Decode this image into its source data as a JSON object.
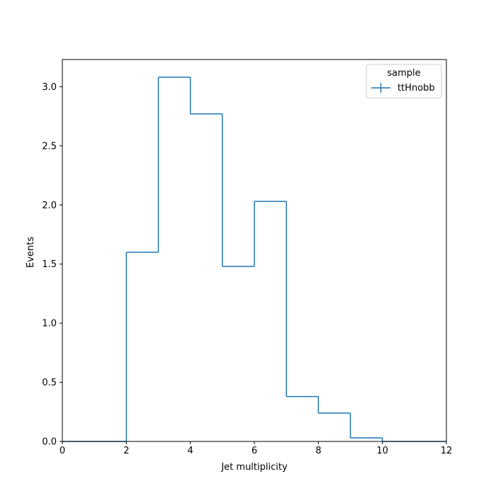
{
  "chart_data": {
    "type": "line",
    "style": "step-histogram",
    "xlabel": "Jet multiplicity",
    "ylabel": "Events",
    "xlim": [
      0,
      12
    ],
    "ylim": [
      0,
      3.23
    ],
    "grid": false,
    "x_ticks": [
      "0",
      "2",
      "4",
      "6",
      "8",
      "10",
      "12"
    ],
    "y_ticks": [
      "0.0",
      "0.5",
      "1.0",
      "1.5",
      "2.0",
      "2.5",
      "3.0"
    ],
    "legend": {
      "title": "sample",
      "placement": "top-right"
    },
    "bin_edges": [
      0,
      1,
      2,
      3,
      4,
      5,
      6,
      7,
      8,
      9,
      10,
      11,
      12
    ],
    "series": [
      {
        "name": "ttHnobb",
        "color": "#1f77b4",
        "values": [
          0,
          0,
          1.6,
          3.08,
          2.77,
          1.48,
          2.03,
          0.38,
          0.24,
          0.03,
          0,
          0
        ]
      }
    ]
  }
}
